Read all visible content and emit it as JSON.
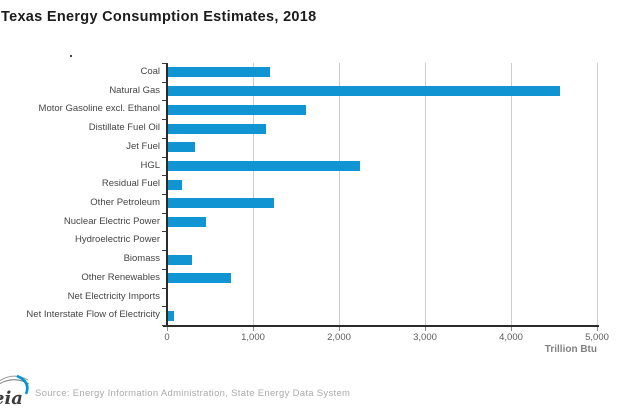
{
  "title": "Texas Energy Consumption Estimates, 2018",
  "chart_data": {
    "type": "bar",
    "orientation": "horizontal",
    "title": "Texas Energy Consumption Estimates, 2018",
    "categories": [
      "Coal",
      "Natural Gas",
      "Motor Gasoline excl. Ethanol",
      "Distillate Fuel Oil",
      "Jet Fuel",
      "HGL",
      "Residual Fuel",
      "Other Petroleum",
      "Nuclear Electric Power",
      "Hydroelectric Power",
      "Biomass",
      "Other Renewables",
      "Net Electricity Imports",
      "Net Interstate Flow of Electricity"
    ],
    "values": [
      1200,
      4570,
      1620,
      1150,
      330,
      2240,
      180,
      1240,
      450,
      10,
      295,
      740,
      5,
      80
    ],
    "xlabel": "Trillion Btu",
    "xlim": [
      0,
      5000
    ],
    "xticks": [
      {
        "value": 0,
        "label": "0"
      },
      {
        "value": 1000,
        "label": "1,000"
      },
      {
        "value": 2000,
        "label": "2,000"
      },
      {
        "value": 3000,
        "label": "3,000"
      },
      {
        "value": 4000,
        "label": "4,000"
      },
      {
        "value": 5000,
        "label": "5,000"
      }
    ],
    "grid": true,
    "legend_position": "none",
    "bar_color": "#1194d2"
  },
  "footer": {
    "source": "Source: Energy Information Administration, State Energy Data System",
    "logo_text": "eia"
  },
  "colors": {
    "bar": "#1194d2",
    "axis": "#2b2b2b",
    "gridline": "#cccccc",
    "title_text": "#1c1c1c",
    "category_text": "#454545",
    "tick_text": "#5c5c5c",
    "axis_title_text": "#828282",
    "source_text": "#aaaaaa",
    "logo_blue": "#0096d7"
  }
}
